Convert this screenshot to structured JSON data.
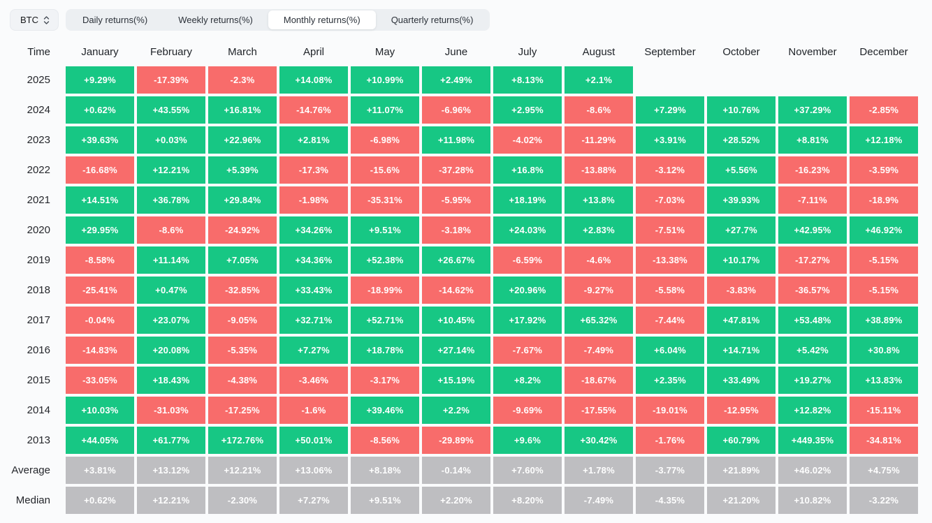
{
  "selector": {
    "label": "BTC",
    "icon": "updown-chevron-icon"
  },
  "tabs": [
    {
      "label": "Daily returns(%)",
      "active": false
    },
    {
      "label": "Weekly returns(%)",
      "active": false
    },
    {
      "label": "Monthly returns(%)",
      "active": true
    },
    {
      "label": "Quarterly returns(%)",
      "active": false
    }
  ],
  "colors": {
    "positive": "#17c784",
    "negative": "#f86c6b",
    "stat": "#bebec1"
  },
  "table": {
    "time_header": "Time",
    "months": [
      "January",
      "February",
      "March",
      "April",
      "May",
      "June",
      "July",
      "August",
      "September",
      "October",
      "November",
      "December"
    ],
    "rows": [
      {
        "label": "2025",
        "type": "year",
        "values": [
          "+9.29%",
          "-17.39%",
          "-2.3%",
          "+14.08%",
          "+10.99%",
          "+2.49%",
          "+8.13%",
          "+2.1%",
          "",
          "",
          "",
          ""
        ]
      },
      {
        "label": "2024",
        "type": "year",
        "values": [
          "+0.62%",
          "+43.55%",
          "+16.81%",
          "-14.76%",
          "+11.07%",
          "-6.96%",
          "+2.95%",
          "-8.6%",
          "+7.29%",
          "+10.76%",
          "+37.29%",
          "-2.85%"
        ]
      },
      {
        "label": "2023",
        "type": "year",
        "values": [
          "+39.63%",
          "+0.03%",
          "+22.96%",
          "+2.81%",
          "-6.98%",
          "+11.98%",
          "-4.02%",
          "-11.29%",
          "+3.91%",
          "+28.52%",
          "+8.81%",
          "+12.18%"
        ]
      },
      {
        "label": "2022",
        "type": "year",
        "values": [
          "-16.68%",
          "+12.21%",
          "+5.39%",
          "-17.3%",
          "-15.6%",
          "-37.28%",
          "+16.8%",
          "-13.88%",
          "-3.12%",
          "+5.56%",
          "-16.23%",
          "-3.59%"
        ]
      },
      {
        "label": "2021",
        "type": "year",
        "values": [
          "+14.51%",
          "+36.78%",
          "+29.84%",
          "-1.98%",
          "-35.31%",
          "-5.95%",
          "+18.19%",
          "+13.8%",
          "-7.03%",
          "+39.93%",
          "-7.11%",
          "-18.9%"
        ]
      },
      {
        "label": "2020",
        "type": "year",
        "values": [
          "+29.95%",
          "-8.6%",
          "-24.92%",
          "+34.26%",
          "+9.51%",
          "-3.18%",
          "+24.03%",
          "+2.83%",
          "-7.51%",
          "+27.7%",
          "+42.95%",
          "+46.92%"
        ]
      },
      {
        "label": "2019",
        "type": "year",
        "values": [
          "-8.58%",
          "+11.14%",
          "+7.05%",
          "+34.36%",
          "+52.38%",
          "+26.67%",
          "-6.59%",
          "-4.6%",
          "-13.38%",
          "+10.17%",
          "-17.27%",
          "-5.15%"
        ]
      },
      {
        "label": "2018",
        "type": "year",
        "values": [
          "-25.41%",
          "+0.47%",
          "-32.85%",
          "+33.43%",
          "-18.99%",
          "-14.62%",
          "+20.96%",
          "-9.27%",
          "-5.58%",
          "-3.83%",
          "-36.57%",
          "-5.15%"
        ]
      },
      {
        "label": "2017",
        "type": "year",
        "values": [
          "-0.04%",
          "+23.07%",
          "-9.05%",
          "+32.71%",
          "+52.71%",
          "+10.45%",
          "+17.92%",
          "+65.32%",
          "-7.44%",
          "+47.81%",
          "+53.48%",
          "+38.89%"
        ]
      },
      {
        "label": "2016",
        "type": "year",
        "values": [
          "-14.83%",
          "+20.08%",
          "-5.35%",
          "+7.27%",
          "+18.78%",
          "+27.14%",
          "-7.67%",
          "-7.49%",
          "+6.04%",
          "+14.71%",
          "+5.42%",
          "+30.8%"
        ]
      },
      {
        "label": "2015",
        "type": "year",
        "values": [
          "-33.05%",
          "+18.43%",
          "-4.38%",
          "-3.46%",
          "-3.17%",
          "+15.19%",
          "+8.2%",
          "-18.67%",
          "+2.35%",
          "+33.49%",
          "+19.27%",
          "+13.83%"
        ]
      },
      {
        "label": "2014",
        "type": "year",
        "values": [
          "+10.03%",
          "-31.03%",
          "-17.25%",
          "-1.6%",
          "+39.46%",
          "+2.2%",
          "-9.69%",
          "-17.55%",
          "-19.01%",
          "-12.95%",
          "+12.82%",
          "-15.11%"
        ]
      },
      {
        "label": "2013",
        "type": "year",
        "values": [
          "+44.05%",
          "+61.77%",
          "+172.76%",
          "+50.01%",
          "-8.56%",
          "-29.89%",
          "+9.6%",
          "+30.42%",
          "-1.76%",
          "+60.79%",
          "+449.35%",
          "-34.81%"
        ]
      },
      {
        "label": "Average",
        "type": "stat",
        "values": [
          "+3.81%",
          "+13.12%",
          "+12.21%",
          "+13.06%",
          "+8.18%",
          "-0.14%",
          "+7.60%",
          "+1.78%",
          "-3.77%",
          "+21.89%",
          "+46.02%",
          "+4.75%"
        ]
      },
      {
        "label": "Median",
        "type": "stat",
        "values": [
          "+0.62%",
          "+12.21%",
          "-2.30%",
          "+7.27%",
          "+9.51%",
          "+2.20%",
          "+8.20%",
          "-7.49%",
          "-4.35%",
          "+21.20%",
          "+10.82%",
          "-3.22%"
        ]
      }
    ]
  }
}
